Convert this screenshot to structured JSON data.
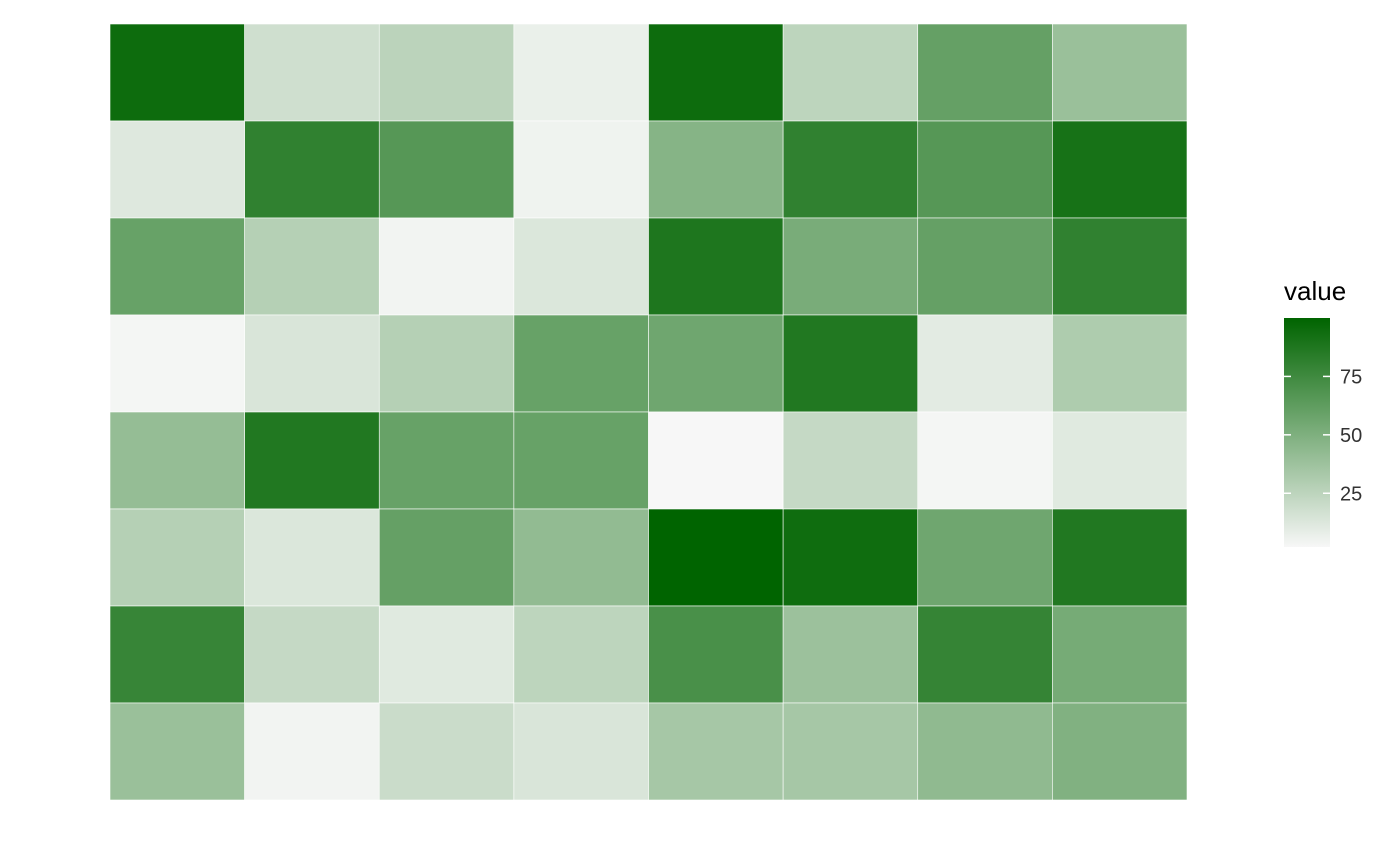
{
  "chart_data": {
    "type": "heatmap",
    "title": "",
    "xlabel": "",
    "ylabel": "",
    "grid": false,
    "legend_placement": "right",
    "rows": 8,
    "cols": 8,
    "values": [
      [
        95,
        18,
        26,
        7,
        95,
        25,
        60,
        39
      ],
      [
        12,
        81,
        66,
        5,
        47,
        81,
        66,
        91
      ],
      [
        59,
        28,
        4,
        13,
        88,
        52,
        60,
        81
      ],
      [
        3,
        14,
        28,
        59,
        56,
        87,
        10,
        31
      ],
      [
        41,
        87,
        59,
        59,
        2,
        22,
        3,
        11
      ],
      [
        28,
        13,
        60,
        42,
        100,
        94,
        56,
        87
      ],
      [
        78,
        22,
        11,
        25,
        71,
        38,
        79,
        53
      ],
      [
        39,
        4,
        20,
        14,
        34,
        34,
        43,
        49
      ]
    ],
    "scale": {
      "min": 2,
      "max": 100,
      "low_color": "#f7f7f7",
      "high_color": "#006400"
    },
    "legend": {
      "title": "value",
      "ticks": [
        25,
        50,
        75
      ],
      "tick_labels": [
        "25",
        "50",
        "75"
      ]
    }
  }
}
